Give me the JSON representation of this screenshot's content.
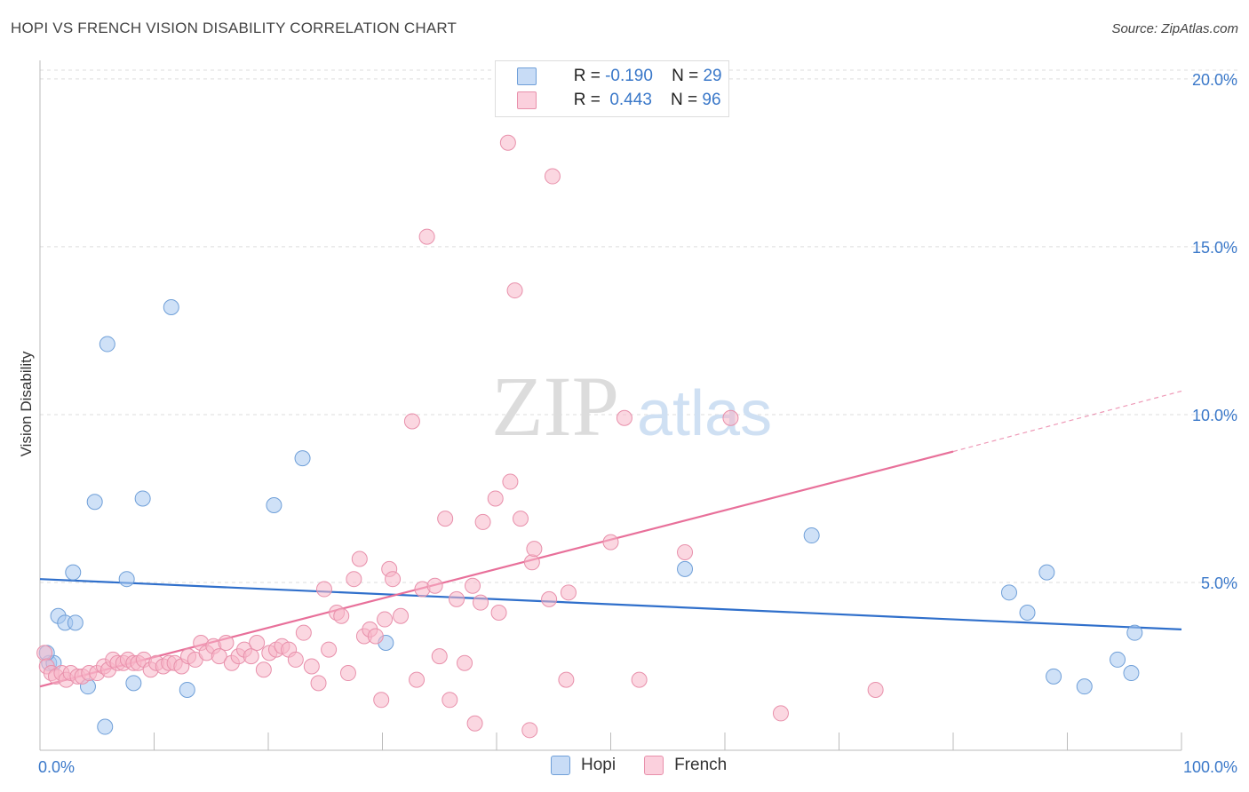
{
  "header": {
    "title": "HOPI VS FRENCH VISION DISABILITY CORRELATION CHART",
    "source": "Source: ZipAtlas.com"
  },
  "watermark": {
    "zip": "ZIP",
    "atlas": "atlas"
  },
  "legend": {
    "rows": [
      {
        "r_label": "R = ",
        "r_value": "-0.190",
        "n_label": "N = ",
        "n_value": "29",
        "color": "#a8c8f0"
      },
      {
        "r_label": "R = ",
        "r_value": " 0.443",
        "n_label": "N = ",
        "n_value": "96",
        "color": "#f7b6c9"
      }
    ]
  },
  "bottom_legend": {
    "items": [
      {
        "label": "Hopi",
        "color": "#a8c8f0"
      },
      {
        "label": "French",
        "color": "#f7b6c9"
      }
    ]
  },
  "chart_data": {
    "type": "scatter",
    "title": "HOPI VS FRENCH VISION DISABILITY CORRELATION CHART",
    "xlabel": "",
    "ylabel": "Vision Disability",
    "xlim": [
      0,
      100
    ],
    "ylim": [
      0,
      20.5
    ],
    "x_tick_labels": [
      "0.0%",
      "100.0%"
    ],
    "y_ticks": [
      5,
      10,
      15,
      20
    ],
    "y_tick_labels": [
      "5.0%",
      "10.0%",
      "15.0%",
      "20.0%"
    ],
    "grid": true,
    "series": [
      {
        "name": "Hopi",
        "color": "#a8c8f0",
        "stroke": "#6f9fd8",
        "trend": {
          "x0": 0,
          "y0": 5.1,
          "x1": 100,
          "y1": 3.6,
          "color": "#2f6fcb"
        },
        "points": [
          [
            0.8,
            2.6
          ],
          [
            1.2,
            2.6
          ],
          [
            0.6,
            2.9
          ],
          [
            1.6,
            4.0
          ],
          [
            2.2,
            3.8
          ],
          [
            3.1,
            3.8
          ],
          [
            2.9,
            5.3
          ],
          [
            4.2,
            1.9
          ],
          [
            4.8,
            7.4
          ],
          [
            5.7,
            0.7
          ],
          [
            5.9,
            12.1
          ],
          [
            7.6,
            5.1
          ],
          [
            8.2,
            2.0
          ],
          [
            9.0,
            7.5
          ],
          [
            11.5,
            13.2
          ],
          [
            12.9,
            1.8
          ],
          [
            20.5,
            7.3
          ],
          [
            23.0,
            8.7
          ],
          [
            30.3,
            3.2
          ],
          [
            56.5,
            5.4
          ],
          [
            67.6,
            6.4
          ],
          [
            84.9,
            4.7
          ],
          [
            86.5,
            4.1
          ],
          [
            88.2,
            5.3
          ],
          [
            88.8,
            2.2
          ],
          [
            91.5,
            1.9
          ],
          [
            94.4,
            2.7
          ],
          [
            95.6,
            2.3
          ],
          [
            95.9,
            3.5
          ]
        ]
      },
      {
        "name": "French",
        "color": "#f7b6c9",
        "stroke": "#e890ab",
        "trend": {
          "x0": 0,
          "y0": 1.9,
          "x1": 80,
          "y1": 8.9,
          "dash_to_x": 100,
          "dash_to_y": 10.7,
          "color": "#e8709a"
        },
        "points": [
          [
            0.4,
            2.9
          ],
          [
            0.6,
            2.5
          ],
          [
            1.0,
            2.3
          ],
          [
            1.4,
            2.2
          ],
          [
            1.9,
            2.3
          ],
          [
            2.3,
            2.1
          ],
          [
            2.7,
            2.3
          ],
          [
            3.3,
            2.2
          ],
          [
            3.7,
            2.2
          ],
          [
            4.3,
            2.3
          ],
          [
            5.0,
            2.3
          ],
          [
            5.6,
            2.5
          ],
          [
            6.0,
            2.4
          ],
          [
            6.4,
            2.7
          ],
          [
            6.8,
            2.6
          ],
          [
            7.3,
            2.6
          ],
          [
            7.7,
            2.7
          ],
          [
            8.2,
            2.6
          ],
          [
            8.6,
            2.6
          ],
          [
            9.1,
            2.7
          ],
          [
            9.7,
            2.4
          ],
          [
            10.2,
            2.6
          ],
          [
            10.8,
            2.5
          ],
          [
            11.3,
            2.6
          ],
          [
            11.8,
            2.6
          ],
          [
            12.4,
            2.5
          ],
          [
            13.0,
            2.8
          ],
          [
            13.6,
            2.7
          ],
          [
            14.1,
            3.2
          ],
          [
            14.6,
            2.9
          ],
          [
            15.2,
            3.1
          ],
          [
            15.7,
            2.8
          ],
          [
            16.3,
            3.2
          ],
          [
            16.8,
            2.6
          ],
          [
            17.4,
            2.8
          ],
          [
            17.9,
            3.0
          ],
          [
            18.5,
            2.8
          ],
          [
            19.0,
            3.2
          ],
          [
            19.6,
            2.4
          ],
          [
            20.1,
            2.9
          ],
          [
            20.7,
            3.0
          ],
          [
            21.2,
            3.1
          ],
          [
            21.8,
            3.0
          ],
          [
            22.4,
            2.7
          ],
          [
            23.1,
            3.5
          ],
          [
            23.8,
            2.5
          ],
          [
            24.4,
            2.0
          ],
          [
            24.9,
            4.8
          ],
          [
            25.3,
            3.0
          ],
          [
            26.0,
            4.1
          ],
          [
            26.4,
            4.0
          ],
          [
            27.0,
            2.3
          ],
          [
            27.5,
            5.1
          ],
          [
            28.0,
            5.7
          ],
          [
            28.4,
            3.4
          ],
          [
            28.9,
            3.6
          ],
          [
            29.4,
            3.4
          ],
          [
            29.9,
            1.5
          ],
          [
            30.2,
            3.9
          ],
          [
            30.6,
            5.4
          ],
          [
            30.9,
            5.1
          ],
          [
            31.6,
            4.0
          ],
          [
            32.6,
            9.8
          ],
          [
            33.0,
            2.1
          ],
          [
            33.5,
            4.8
          ],
          [
            33.9,
            15.3
          ],
          [
            34.6,
            4.9
          ],
          [
            35.0,
            2.8
          ],
          [
            35.5,
            6.9
          ],
          [
            35.9,
            1.5
          ],
          [
            36.5,
            4.5
          ],
          [
            37.2,
            2.6
          ],
          [
            37.9,
            4.9
          ],
          [
            38.1,
            0.8
          ],
          [
            38.6,
            4.4
          ],
          [
            38.8,
            6.8
          ],
          [
            39.9,
            7.5
          ],
          [
            40.2,
            4.1
          ],
          [
            41.0,
            18.1
          ],
          [
            41.2,
            8.0
          ],
          [
            41.6,
            13.7
          ],
          [
            42.1,
            6.9
          ],
          [
            42.9,
            0.6
          ],
          [
            43.1,
            5.6
          ],
          [
            43.3,
            6.0
          ],
          [
            44.6,
            4.5
          ],
          [
            46.1,
            2.1
          ],
          [
            46.3,
            4.7
          ],
          [
            50.0,
            6.2
          ],
          [
            51.2,
            9.9
          ],
          [
            56.5,
            5.9
          ],
          [
            60.5,
            9.9
          ],
          [
            64.9,
            1.1
          ],
          [
            73.2,
            1.8
          ],
          [
            44.9,
            17.1
          ],
          [
            52.5,
            2.1
          ]
        ]
      }
    ]
  }
}
